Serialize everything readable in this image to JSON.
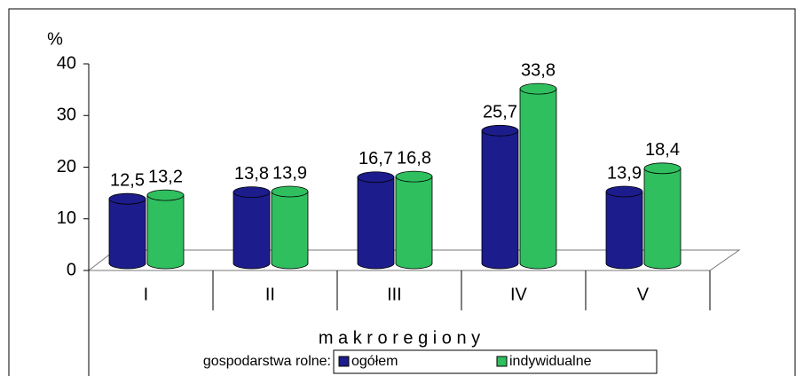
{
  "chart_data": {
    "type": "bar3d",
    "y_axis_label": "%",
    "x_axis_label": "m a k r o r e g i o n y",
    "legend_title": "gospodarstwa rolne:",
    "categories": [
      "I",
      "II",
      "III",
      "IV",
      "V"
    ],
    "series": [
      {
        "name": "ogółem",
        "color": "#1c1c8c",
        "values": [
          12.5,
          13.8,
          16.7,
          25.7,
          13.9
        ],
        "value_labels": [
          "12,5",
          "13,8",
          "16,7",
          "25,7",
          "13,9"
        ]
      },
      {
        "name": "indywidualne",
        "color": "#2fbf5f",
        "values": [
          13.2,
          13.9,
          16.8,
          33.8,
          18.4
        ],
        "value_labels": [
          "13,2",
          "13,9",
          "16,8",
          "33,8",
          "18,4"
        ]
      }
    ],
    "ylim": [
      0,
      40
    ],
    "yticks": [
      0,
      10,
      20,
      30,
      40
    ]
  }
}
